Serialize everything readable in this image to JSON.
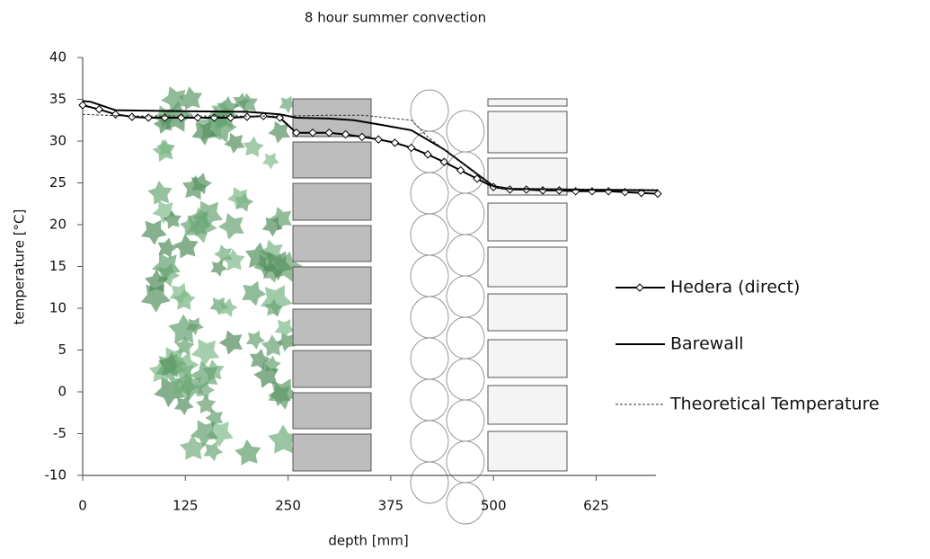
{
  "chart_data": {
    "type": "line",
    "title": "8 hour summer convection",
    "x_label": "depth [mm]",
    "y_label": "temperature [°C]",
    "xlim": [
      0,
      700
    ],
    "xticks": [
      0,
      125,
      250,
      375,
      500,
      625
    ],
    "ylim": [
      -10,
      40
    ],
    "yticks": [
      -10,
      -5,
      0,
      5,
      10,
      15,
      20,
      25,
      30,
      35,
      40
    ],
    "legend": "right",
    "series": [
      {
        "name": "Hedera (direct)",
        "color": "#000000",
        "marker": "diamond",
        "dash": false,
        "x": [
          0,
          20,
          40,
          60,
          80,
          100,
          120,
          140,
          160,
          180,
          200,
          220,
          240,
          260,
          280,
          300,
          320,
          340,
          360,
          380,
          400,
          420,
          440,
          460,
          480,
          500,
          520,
          540,
          560,
          580,
          600,
          620,
          640,
          660,
          680,
          700
        ],
        "values": [
          34.3,
          33.8,
          33.2,
          32.9,
          32.8,
          32.8,
          32.8,
          32.8,
          32.8,
          32.8,
          32.9,
          33.0,
          32.8,
          31.0,
          31.0,
          31.0,
          30.8,
          30.5,
          30.2,
          29.8,
          29.2,
          28.4,
          27.5,
          26.5,
          25.5,
          24.5,
          24.2,
          24.2,
          24.1,
          24.1,
          24.0,
          24.0,
          24.0,
          23.9,
          23.8,
          23.7
        ]
      },
      {
        "name": "Barewall",
        "color": "#000000",
        "marker": "none",
        "dash": false,
        "x": [
          0,
          10,
          40,
          100,
          200,
          240,
          260,
          300,
          330,
          360,
          400,
          440,
          470,
          500,
          520,
          600,
          700
        ],
        "values": [
          34.8,
          34.7,
          33.7,
          33.6,
          33.5,
          33.2,
          32.8,
          32.7,
          32.5,
          32.0,
          31.3,
          29.0,
          26.8,
          24.6,
          24.3,
          24.2,
          24.1
        ]
      },
      {
        "name": "Theoretical Temperature",
        "color": "#333333",
        "marker": "none",
        "dash": true,
        "x": [
          0,
          50,
          100,
          200,
          250,
          300,
          340,
          400,
          420,
          460,
          500,
          520,
          700
        ],
        "values": [
          33.2,
          33.0,
          33.0,
          33.0,
          33.0,
          33.1,
          33.1,
          32.5,
          30.5,
          27.5,
          24.5,
          24.3,
          24.2
        ]
      }
    ]
  }
}
